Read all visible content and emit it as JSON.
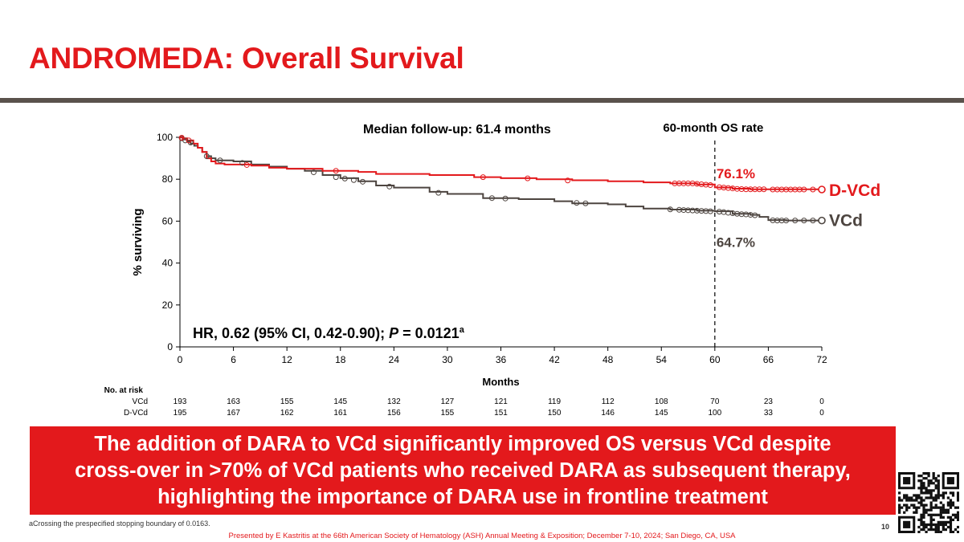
{
  "slide": {
    "title": "ANDROMEDA: Overall Survival",
    "page_number": "10",
    "footnote": "aCrossing the prespecified stopping boundary of 0.0163.",
    "presented_by": "Presented by E Kastritis at the 66th American Society of Hematology (ASH) Annual Meeting & Exposition; December 7-10, 2024; San Diego, CA, USA",
    "conclusion_lines": [
      "The addition of DARA to VCd significantly improved OS versus VCd despite",
      "cross-over in >70% of VCd patients who received DARA as subsequent therapy,",
      "highlighting the importance of DARA use in frontline treatment"
    ]
  },
  "colors": {
    "accent": "#e3191c",
    "dvcd": "#e3191c",
    "vcd": "#4d4540",
    "rule": "#5a524c"
  },
  "chart_data": {
    "type": "line",
    "xlabel": "Months",
    "ylabel": "% surviving",
    "xlim": [
      0,
      72
    ],
    "ylim": [
      0,
      100
    ],
    "x_ticks": [
      0,
      6,
      12,
      18,
      24,
      30,
      36,
      42,
      48,
      54,
      60,
      66,
      72
    ],
    "y_ticks": [
      0,
      20,
      40,
      60,
      80,
      100
    ],
    "grid": false,
    "annotations": {
      "median_followup": "Median follow-up: 61.4 months",
      "os_rate_label": "60-month OS rate",
      "os_rate_x": 60,
      "hr_main": "HR, 0.62 (95% CI, 0.42-0.90); ",
      "hr_p": "P",
      "hr_value": " = 0.0121",
      "hr_sup": "a"
    },
    "series": [
      {
        "name": "D-VCd",
        "rate_label": "76.1%",
        "points": [
          [
            0,
            100
          ],
          [
            0.3,
            99.5
          ],
          [
            0.8,
            98.5
          ],
          [
            1.5,
            97
          ],
          [
            2,
            95
          ],
          [
            2.5,
            93
          ],
          [
            3,
            90
          ],
          [
            3.5,
            88.5
          ],
          [
            4,
            87.5
          ],
          [
            5,
            87
          ],
          [
            8,
            86.5
          ],
          [
            10,
            85.5
          ],
          [
            12,
            85
          ],
          [
            16,
            84
          ],
          [
            20,
            83.5
          ],
          [
            22,
            82.5
          ],
          [
            28,
            82
          ],
          [
            33,
            81
          ],
          [
            36,
            80.5
          ],
          [
            40,
            80
          ],
          [
            44,
            79.5
          ],
          [
            48,
            79
          ],
          [
            52,
            78.5
          ],
          [
            55,
            78
          ],
          [
            58,
            77.5
          ],
          [
            60,
            76.1
          ],
          [
            61,
            76
          ],
          [
            62,
            75.5
          ],
          [
            64,
            75.2
          ],
          [
            72,
            75.1
          ]
        ],
        "censors": [
          [
            0.2,
            99.8
          ],
          [
            1,
            98.5
          ],
          [
            7.5,
            86.8
          ],
          [
            17.5,
            84
          ],
          [
            34,
            81
          ],
          [
            39,
            80.4
          ],
          [
            43.5,
            79.4
          ],
          [
            55.5,
            78
          ],
          [
            56,
            78
          ],
          [
            56.5,
            78
          ],
          [
            57,
            78
          ],
          [
            57.5,
            78
          ],
          [
            58,
            77.8
          ],
          [
            58.5,
            77.6
          ],
          [
            59,
            77.4
          ],
          [
            59.5,
            77.2
          ],
          [
            60.5,
            76.2
          ],
          [
            61,
            76
          ],
          [
            61.5,
            75.8
          ],
          [
            62,
            75.6
          ],
          [
            62.5,
            75.4
          ],
          [
            63,
            75.3
          ],
          [
            63.5,
            75.2
          ],
          [
            64,
            75.2
          ],
          [
            64.5,
            75.2
          ],
          [
            65,
            75.2
          ],
          [
            65.5,
            75.2
          ],
          [
            66.5,
            75.1
          ],
          [
            67,
            75.1
          ],
          [
            67.5,
            75.1
          ],
          [
            68,
            75.1
          ],
          [
            68.5,
            75.1
          ],
          [
            69,
            75.1
          ],
          [
            69.5,
            75.1
          ],
          [
            70,
            75.1
          ],
          [
            71,
            75.1
          ]
        ],
        "end_marker": [
          72,
          75.1
        ]
      },
      {
        "name": "VCd",
        "rate_label": "64.7%",
        "points": [
          [
            0,
            100
          ],
          [
            0.3,
            99
          ],
          [
            0.8,
            98
          ],
          [
            1.2,
            97
          ],
          [
            1.6,
            96
          ],
          [
            2,
            95
          ],
          [
            2.5,
            93
          ],
          [
            3,
            91
          ],
          [
            3.5,
            90
          ],
          [
            4,
            89
          ],
          [
            6,
            88.5
          ],
          [
            8,
            87
          ],
          [
            10,
            86
          ],
          [
            12,
            85
          ],
          [
            14,
            84
          ],
          [
            16,
            82
          ],
          [
            18,
            80.5
          ],
          [
            20,
            79
          ],
          [
            22,
            77
          ],
          [
            24,
            76
          ],
          [
            28,
            74
          ],
          [
            30,
            73
          ],
          [
            34,
            71
          ],
          [
            38,
            70.5
          ],
          [
            42,
            69.5
          ],
          [
            44,
            68.5
          ],
          [
            48,
            68
          ],
          [
            50,
            67
          ],
          [
            52,
            66
          ],
          [
            55,
            65.5
          ],
          [
            58,
            65
          ],
          [
            60,
            64.7
          ],
          [
            62,
            63.5
          ],
          [
            64,
            63
          ],
          [
            65,
            62
          ],
          [
            66,
            60.5
          ],
          [
            68,
            60.3
          ],
          [
            72,
            60.3
          ]
        ],
        "censors": [
          [
            0.2,
            99.5
          ],
          [
            0.6,
            98.5
          ],
          [
            1.2,
            97.5
          ],
          [
            3,
            91
          ],
          [
            4.5,
            89
          ],
          [
            7,
            87.8
          ],
          [
            15,
            83.3
          ],
          [
            17.5,
            81
          ],
          [
            18.5,
            80.3
          ],
          [
            19.5,
            79.6
          ],
          [
            20.5,
            78.8
          ],
          [
            23.5,
            76.5
          ],
          [
            29,
            73.5
          ],
          [
            35,
            71
          ],
          [
            36.5,
            70.8
          ],
          [
            44.5,
            68.7
          ],
          [
            45.5,
            68.5
          ],
          [
            55,
            65.6
          ],
          [
            56,
            65.4
          ],
          [
            56.5,
            65.3
          ],
          [
            57,
            65.2
          ],
          [
            57.5,
            65.1
          ],
          [
            58,
            65
          ],
          [
            58.5,
            64.9
          ],
          [
            59,
            64.8
          ],
          [
            59.5,
            64.7
          ],
          [
            60.5,
            64.5
          ],
          [
            61,
            64.3
          ],
          [
            61.5,
            64
          ],
          [
            62,
            63.8
          ],
          [
            62.5,
            63.5
          ],
          [
            63,
            63.3
          ],
          [
            63.5,
            63.2
          ],
          [
            64,
            63
          ],
          [
            64.5,
            62.8
          ],
          [
            66.5,
            60.4
          ],
          [
            67,
            60.3
          ],
          [
            67.5,
            60.3
          ],
          [
            68,
            60.3
          ],
          [
            69,
            60.3
          ],
          [
            70,
            60.3
          ],
          [
            71,
            60.3
          ]
        ],
        "end_marker": [
          72,
          60.3
        ]
      }
    ],
    "risk_table": {
      "header": "No. at risk",
      "x": [
        0,
        6,
        12,
        18,
        24,
        30,
        36,
        42,
        48,
        54,
        60,
        66,
        72
      ],
      "rows": [
        {
          "label": "VCd",
          "values": [
            "193",
            "163",
            "155",
            "145",
            "132",
            "127",
            "121",
            "119",
            "112",
            "108",
            "70",
            "23",
            "0"
          ]
        },
        {
          "label": "D-VCd",
          "values": [
            "195",
            "167",
            "162",
            "161",
            "156",
            "155",
            "151",
            "150",
            "146",
            "145",
            "100",
            "33",
            "0"
          ]
        }
      ]
    }
  }
}
